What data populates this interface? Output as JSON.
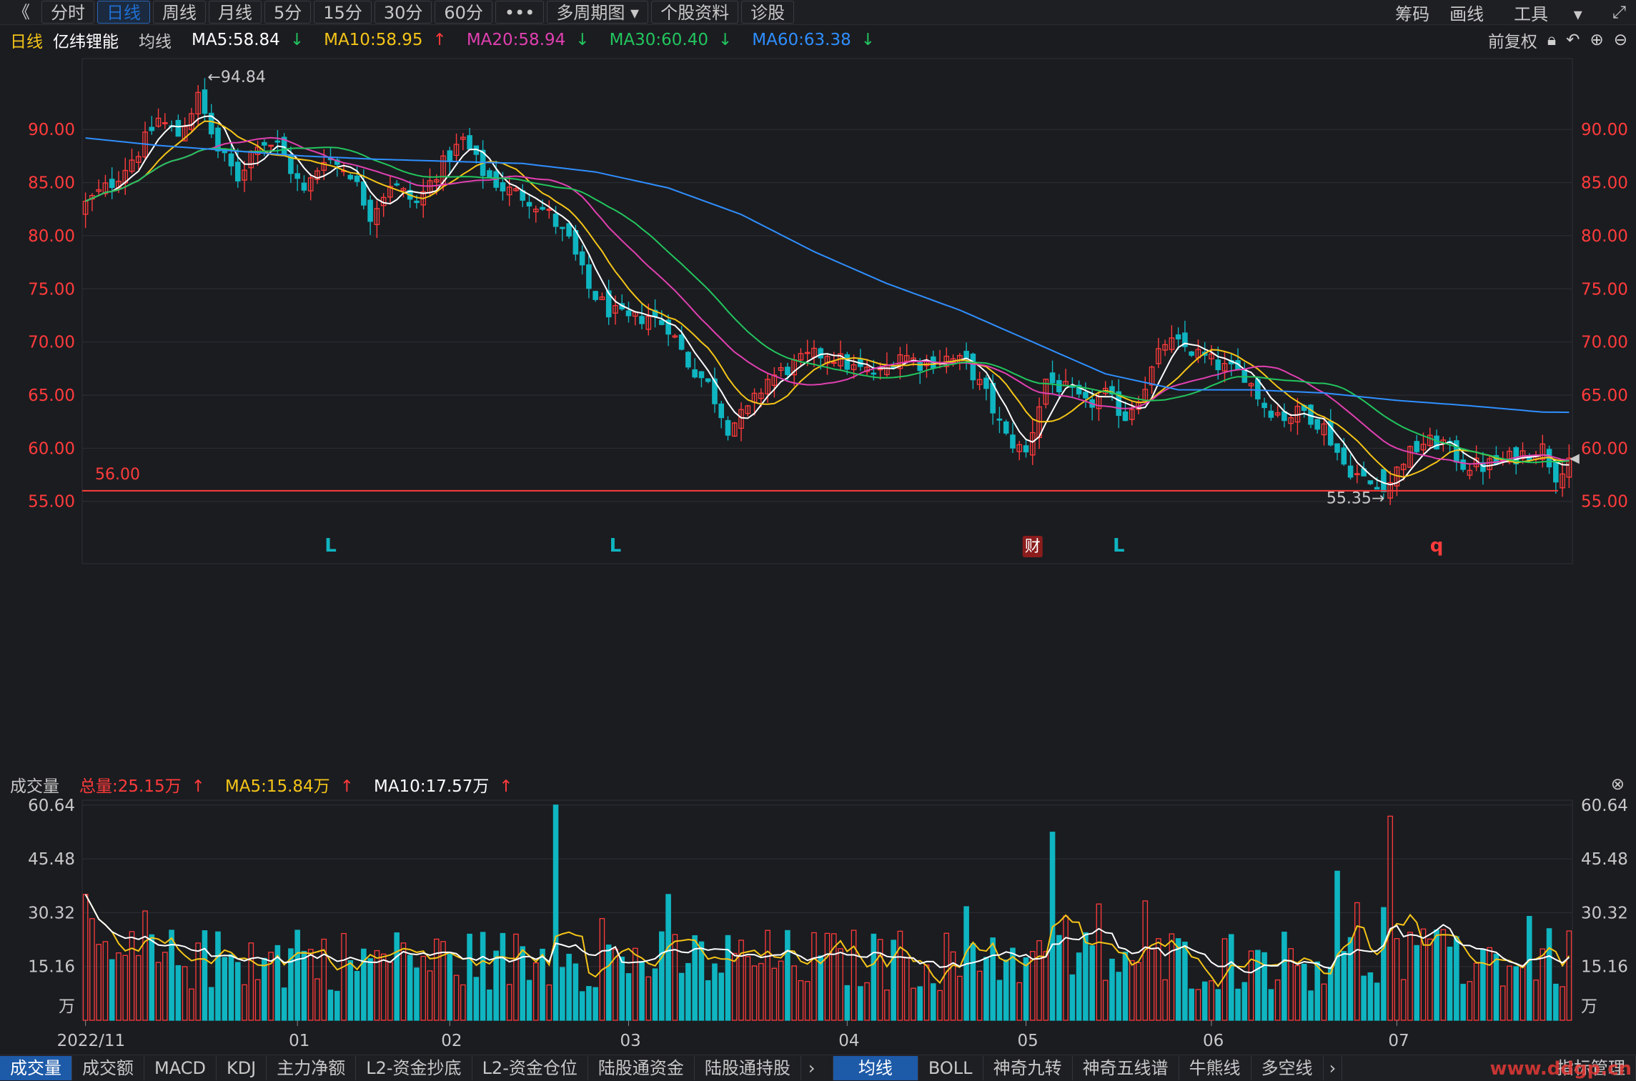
{
  "toolbar": {
    "back_glyph": "《",
    "periods": [
      "分时",
      "日线",
      "周线",
      "月线",
      "5分",
      "15分",
      "30分",
      "60分"
    ],
    "active_period": "日线",
    "more_glyph": "•••",
    "multi": "多周期图",
    "profile": "个股资料",
    "diagnose": "诊股",
    "right": [
      "筹码",
      "画线",
      "工具"
    ],
    "fullscreen_icon": "fullscreen-icon"
  },
  "info": {
    "period": "日线",
    "stock": "亿纬锂能",
    "label": "均线",
    "ma5": "MA5:58.84",
    "ma10": "MA10:58.95",
    "ma20": "MA20:58.94",
    "ma30": "MA30:60.40",
    "ma60": "MA60:63.38",
    "adjust": "前复权"
  },
  "colors": {
    "up": "#ff3b3b",
    "down": "#0fb5c0",
    "ma5": "#ffffff",
    "ma10": "#f5c518",
    "ma20": "#e040b0",
    "ma30": "#22c55e",
    "ma60": "#2f8fff",
    "bg": "#1b1c20",
    "grid": "#2e2f36"
  },
  "chart_data": [
    {
      "type": "candlestick",
      "ylim": [
        53.5,
        96
      ],
      "y_ticks": [
        "90.00",
        "85.00",
        "80.00",
        "75.00",
        "70.00",
        "65.00",
        "60.00",
        "55.00"
      ],
      "y_tick_values": [
        90,
        85,
        80,
        75,
        70,
        65,
        60,
        55
      ],
      "hline": {
        "value": 56.0,
        "label": "56.00"
      },
      "annotations": {
        "high": "←94.84",
        "low": "55.35→"
      },
      "markers": [
        {
          "text": "L",
          "index": 37
        },
        {
          "text": "L",
          "index": 80
        },
        {
          "text": "财",
          "index": 143
        },
        {
          "text": "L",
          "index": 156
        },
        {
          "text": "q",
          "index": 204
        }
      ],
      "close_anchors": [
        [
          0,
          83
        ],
        [
          4,
          85
        ],
        [
          8,
          88
        ],
        [
          11,
          91
        ],
        [
          14,
          89.5
        ],
        [
          17,
          93
        ],
        [
          20,
          88
        ],
        [
          23,
          85.5
        ],
        [
          26,
          89
        ],
        [
          29,
          88.5
        ],
        [
          33,
          84
        ],
        [
          36,
          87.5
        ],
        [
          40,
          86
        ],
        [
          43,
          82
        ],
        [
          46,
          85
        ],
        [
          50,
          83
        ],
        [
          53,
          86
        ],
        [
          57,
          89
        ],
        [
          60,
          86
        ],
        [
          63,
          84.5
        ],
        [
          67,
          83.5
        ],
        [
          70,
          82
        ],
        [
          73,
          79.5
        ],
        [
          76,
          75
        ],
        [
          79,
          73
        ],
        [
          82,
          72
        ],
        [
          85,
          72.5
        ],
        [
          88,
          71.5
        ],
        [
          91,
          68
        ],
        [
          94,
          66
        ],
        [
          97,
          62
        ],
        [
          100,
          63.5
        ],
        [
          103,
          66.5
        ],
        [
          106,
          67.5
        ],
        [
          109,
          68.5
        ],
        [
          112,
          69
        ],
        [
          116,
          67.5
        ],
        [
          120,
          67
        ],
        [
          123,
          69
        ],
        [
          126,
          68
        ],
        [
          130,
          68.5
        ],
        [
          133,
          68
        ],
        [
          136,
          65
        ],
        [
          139,
          61
        ],
        [
          142,
          59.5
        ],
        [
          145,
          66.5
        ],
        [
          148,
          65.5
        ],
        [
          151,
          64
        ],
        [
          154,
          65
        ],
        [
          157,
          63
        ],
        [
          160,
          66
        ],
        [
          163,
          70
        ],
        [
          166,
          69.5
        ],
        [
          169,
          68.5
        ],
        [
          172,
          67.5
        ],
        [
          175,
          67
        ],
        [
          178,
          64
        ],
        [
          181,
          63
        ],
        [
          184,
          63.5
        ],
        [
          187,
          62
        ],
        [
          190,
          58.5
        ],
        [
          193,
          57
        ],
        [
          196,
          55.8
        ],
        [
          199,
          59
        ],
        [
          202,
          60.5
        ],
        [
          205,
          60.5
        ],
        [
          208,
          58.5
        ],
        [
          211,
          58.3
        ],
        [
          214,
          58.8
        ],
        [
          217,
          59.5
        ],
        [
          220,
          60
        ],
        [
          222,
          57.5
        ],
        [
          224,
          59.2
        ]
      ],
      "ma60_anchors": [
        [
          0,
          89.2
        ],
        [
          11,
          88.5
        ],
        [
          22,
          88
        ],
        [
          33,
          87.5
        ],
        [
          44,
          87.2
        ],
        [
          55,
          87
        ],
        [
          66,
          86.8
        ],
        [
          77,
          86
        ],
        [
          88,
          84.5
        ],
        [
          99,
          82
        ],
        [
          110,
          78.5
        ],
        [
          121,
          75.5
        ],
        [
          132,
          73
        ],
        [
          143,
          70
        ],
        [
          154,
          67
        ],
        [
          165,
          65.5
        ],
        [
          176,
          65.5
        ],
        [
          187,
          65.2
        ],
        [
          198,
          64.5
        ],
        [
          209,
          64
        ],
        [
          220,
          63.4
        ],
        [
          224,
          63.38
        ]
      ],
      "x_ticks": [
        {
          "label": "2022/11",
          "index": 0
        },
        {
          "label": "01",
          "index": 32
        },
        {
          "label": "02",
          "index": 55
        },
        {
          "label": "03",
          "index": 82
        },
        {
          "label": "04",
          "index": 115
        },
        {
          "label": "05",
          "index": 142
        },
        {
          "label": "06",
          "index": 170
        },
        {
          "label": "07",
          "index": 198
        }
      ],
      "candle_count": 225
    },
    {
      "type": "bar",
      "name": "成交量",
      "ylim": [
        0,
        62
      ],
      "y_ticks": [
        "60.64",
        "45.48",
        "30.32",
        "15.16",
        "万"
      ],
      "y_tick_values": [
        60.64,
        45.48,
        30.32,
        15.16,
        4
      ],
      "total": "总量:25.15万",
      "ma5": "MA5:15.84万",
      "ma10": "MA10:17.57万",
      "spikes": [
        {
          "index": 71,
          "value": 60.64
        },
        {
          "index": 133,
          "value": 32
        },
        {
          "index": 146,
          "value": 53
        },
        {
          "index": 189,
          "value": 42
        },
        {
          "index": 197,
          "value": 57.5
        },
        {
          "index": 224,
          "value": 25.15
        }
      ]
    }
  ],
  "bottom": {
    "tabs_left": [
      "成交量",
      "成交额",
      "MACD",
      "KDJ",
      "主力净额",
      "L2-资金抄底",
      "L2-资金仓位",
      "陆股通资金",
      "陆股通持股"
    ],
    "tabs_right": [
      "均线",
      "BOLL",
      "神奇九转",
      "神奇五线谱",
      "牛熊线",
      "多空线"
    ],
    "more": "指标管理",
    "watermark": "www.ddgp.cn"
  }
}
